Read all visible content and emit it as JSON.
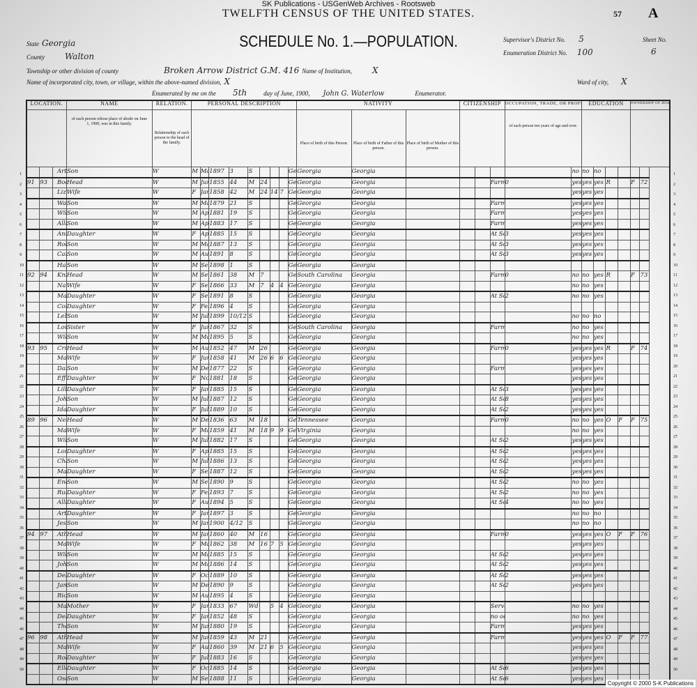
{
  "watermark": "SK Publications - USGenWeb Archives - Rootsweb",
  "title": "TWELFTH CENSUS OF THE UNITED STATES.",
  "page_number": "57",
  "page_letter": "A",
  "schedule_title": "SCHEDULE No. 1.—POPULATION.",
  "header": {
    "state_label": "State",
    "state": "Georgia",
    "county_label": "County",
    "county": "Walton",
    "township_label": "Township or other division of county",
    "township": "Broken Arrow District G.M. 416",
    "institution_label": "Name of Institution,",
    "institution": "X",
    "city_label": "Name of incorporated city, town, or village, within the above-named division,",
    "city": "X",
    "ward_label": "Ward of city,",
    "ward": "X",
    "enumerated_label": "Enumerated by me on the",
    "enumerated_day": "5th",
    "month_label": "day of June, 1900,",
    "enumerator": "John G. Waterlow",
    "enumerator_label": "Enumerator.",
    "supervisor_label": "Supervisor's District No.",
    "supervisor": "5",
    "enumeration_label": "Enumeration District No.",
    "enumeration": "100",
    "sheet_label": "Sheet No.",
    "sheet": "6"
  },
  "sections": {
    "location": "LOCATION.",
    "name": "NAME",
    "relation": "RELATION.",
    "personal": "PERSONAL DESCRIPTION",
    "nativity": "NATIVITY",
    "citizenship": "CITIZENSHIP",
    "occupation": "OCCUPATION, TRADE, OR PROFESSION",
    "education": "EDUCATION",
    "ownership": "OWNERSHIP OF HOME."
  },
  "column_headers": {
    "name": "of each person whose place of abode on June 1, 1900, was in this family.",
    "relation": "Relationship of each person to the head of the family.",
    "birth_person": "Place of birth of this Person.",
    "birth_father": "Place of birth of Father of this person.",
    "birth_mother": "Place of birth of Mother of this person.",
    "occupation": "of each person ten years of age and over."
  },
  "rows": [
    [
      "1",
      "",
      "",
      "Arthur",
      "Son",
      "W",
      "M",
      "May",
      "1897",
      "3",
      "S",
      "",
      "",
      "",
      "Georgia",
      "Georgia",
      "Georgia",
      "",
      "",
      "no",
      "no",
      "no",
      "",
      "",
      "",
      ""
    ],
    [
      "2",
      "91",
      "93",
      "Booth Robert",
      "Head",
      "W",
      "M",
      "June",
      "1855",
      "44",
      "M",
      "24",
      "",
      "",
      "Georgia",
      "Georgia",
      "Georgia",
      "Farmer",
      "0",
      "yes",
      "yes",
      "yes",
      "R",
      "",
      "F",
      "72"
    ],
    [
      "3",
      "",
      "",
      "Lizzie D",
      "Wife",
      "W",
      "F",
      "Jan",
      "1858",
      "42",
      "M",
      "24",
      "14",
      "7",
      "Georgia",
      "Georgia",
      "Georgia",
      "",
      "",
      "yes",
      "yes",
      "yes",
      "",
      "",
      "",
      ""
    ],
    [
      "4",
      "",
      "",
      "Walter H",
      "Son",
      "W",
      "M",
      "May",
      "1879",
      "21",
      "S",
      "",
      "",
      "",
      "Georgia",
      "Georgia",
      "Georgia",
      "Farm Labor",
      "",
      "yes",
      "yes",
      "yes",
      "",
      "",
      "",
      ""
    ],
    [
      "5",
      "",
      "",
      "William J",
      "Son",
      "W",
      "M",
      "Apr",
      "1881",
      "19",
      "S",
      "",
      "",
      "",
      "Georgia",
      "Georgia",
      "Georgia",
      "Farm Labor",
      "",
      "yes",
      "yes",
      "yes",
      "",
      "",
      "",
      ""
    ],
    [
      "6",
      "",
      "",
      "Allie L",
      "Son",
      "W",
      "M",
      "Apr",
      "1883",
      "17",
      "S",
      "",
      "",
      "",
      "Georgia",
      "Georgia",
      "Georgia",
      "Farm Labor",
      "",
      "yes",
      "yes",
      "yes",
      "",
      "",
      "",
      ""
    ],
    [
      "7",
      "",
      "",
      "Annie L",
      "Daughter",
      "W",
      "F",
      "Apr",
      "1885",
      "15",
      "S",
      "",
      "",
      "",
      "Georgia",
      "Georgia",
      "Georgia",
      "At School",
      "3",
      "yes",
      "yes",
      "yes",
      "",
      "",
      "",
      ""
    ],
    [
      "8",
      "",
      "",
      "Robert M",
      "Son",
      "W",
      "M",
      "Mar",
      "1887",
      "13",
      "S",
      "",
      "",
      "",
      "Georgia",
      "Georgia",
      "Georgia",
      "At School",
      "3",
      "yes",
      "yes",
      "yes",
      "",
      "",
      "",
      ""
    ],
    [
      "9",
      "",
      "",
      "Carl",
      "Son",
      "W",
      "M",
      "Aug",
      "1891",
      "8",
      "S",
      "",
      "",
      "",
      "Georgia",
      "Georgia",
      "Georgia",
      "At School",
      "3",
      "yes",
      "yes",
      "yes",
      "",
      "",
      "",
      ""
    ],
    [
      "10",
      "",
      "",
      "Haygood",
      "Son",
      "W",
      "M",
      "Sept",
      "1898",
      "1",
      "S",
      "",
      "",
      "",
      "Georgia",
      "Georgia",
      "Georgia",
      "",
      "",
      "",
      "",
      "",
      "",
      "",
      "",
      ""
    ],
    [
      "11",
      "92",
      "94",
      "Knight Benjamin",
      "Head",
      "W",
      "M",
      "Sept",
      "1861",
      "38",
      "M",
      "7",
      "",
      "",
      "Georgia",
      "South Carolina",
      "Georgia",
      "Farmer",
      "0",
      "no",
      "no",
      "yes",
      "R",
      "",
      "F",
      "73"
    ],
    [
      "12",
      "",
      "",
      "Nancy E",
      "Wife",
      "W",
      "F",
      "Sept",
      "1866",
      "33",
      "M",
      "7",
      "4",
      "4",
      "Georgia",
      "Georgia",
      "Georgia",
      "",
      "",
      "no",
      "no",
      "yes",
      "",
      "",
      "",
      ""
    ],
    [
      "13",
      "",
      "",
      "Mary",
      "Daughter",
      "W",
      "F",
      "Sept",
      "1891",
      "8",
      "S",
      "",
      "",
      "",
      "Georgia",
      "Georgia",
      "Georgia",
      "At School",
      "2",
      "no",
      "no",
      "yes",
      "",
      "",
      "",
      ""
    ],
    [
      "14",
      "",
      "",
      "Cora L",
      "Daughter",
      "W",
      "F",
      "Feb",
      "1896",
      "4",
      "S",
      "",
      "",
      "",
      "Georgia",
      "Georgia",
      "Georgia",
      "",
      "",
      "",
      "",
      "",
      "",
      "",
      "",
      ""
    ],
    [
      "15",
      "",
      "",
      "Leland",
      "Son",
      "W",
      "M",
      "July",
      "1899",
      "10/12",
      "S",
      "",
      "",
      "",
      "Georgia",
      "Georgia",
      "Georgia",
      "",
      "",
      "no",
      "no",
      "no",
      "",
      "",
      "",
      ""
    ],
    [
      "16",
      "",
      "",
      "Lou",
      "Sister",
      "W",
      "F",
      "June",
      "1867",
      "32",
      "S",
      "",
      "",
      "",
      "Georgia",
      "South Carolina",
      "Georgia",
      "Farm Laborer",
      "",
      "no",
      "no",
      "yes",
      "",
      "",
      "",
      ""
    ],
    [
      "17",
      "",
      "",
      "William H",
      "Son",
      "W",
      "M",
      "Mar",
      "1895",
      "5",
      "S",
      "",
      "",
      "",
      "Georgia",
      "Georgia",
      "Georgia",
      "",
      "",
      "no",
      "no",
      "yes",
      "",
      "",
      "",
      ""
    ],
    [
      "18",
      "93",
      "95",
      "Crumpton James",
      "Head",
      "W",
      "M",
      "Aug",
      "1852",
      "47",
      "M",
      "26",
      "",
      "",
      "Georgia",
      "Georgia",
      "Georgia",
      "Farmer",
      "0",
      "yes",
      "yes",
      "yes",
      "R",
      "",
      "F",
      "74"
    ],
    [
      "19",
      "",
      "",
      "Mary W",
      "Wife",
      "W",
      "F",
      "June",
      "1858",
      "41",
      "M",
      "26",
      "6",
      "6",
      "Georgia",
      "Georgia",
      "Georgia",
      "",
      "",
      "yes",
      "yes",
      "yes",
      "",
      "",
      "",
      ""
    ],
    [
      "20",
      "",
      "",
      "Daniel P",
      "Son",
      "W",
      "M",
      "Dec",
      "1877",
      "22",
      "S",
      "",
      "",
      "",
      "Georgia",
      "Georgia",
      "Georgia",
      "Farm Laborer",
      "",
      "yes",
      "yes",
      "yes",
      "",
      "",
      "",
      ""
    ],
    [
      "21",
      "",
      "",
      "Effie M",
      "Daughter",
      "W",
      "F",
      "Nov",
      "1881",
      "18",
      "S",
      "",
      "",
      "",
      "Georgia",
      "Georgia",
      "Georgia",
      "",
      "",
      "yes",
      "yes",
      "yes",
      "",
      "",
      "",
      ""
    ],
    [
      "22",
      "",
      "",
      "Lillie L",
      "Daughter",
      "W",
      "F",
      "Jan",
      "1885",
      "15",
      "S",
      "",
      "",
      "",
      "Georgia",
      "Georgia",
      "Georgia",
      "At School",
      "3",
      "yes",
      "yes",
      "yes",
      "",
      "",
      "",
      ""
    ],
    [
      "23",
      "",
      "",
      "John J",
      "Son",
      "W",
      "M",
      "July",
      "1887",
      "12",
      "S",
      "",
      "",
      "",
      "Georgia",
      "Georgia",
      "Georgia",
      "At School",
      "8",
      "yes",
      "yes",
      "yes",
      "",
      "",
      "",
      ""
    ],
    [
      "24",
      "",
      "",
      "Ida A",
      "Daughter",
      "W",
      "F",
      "July",
      "1889",
      "10",
      "S",
      "",
      "",
      "",
      "Georgia",
      "Georgia",
      "Georgia",
      "At School",
      "2",
      "yes",
      "yes",
      "yes",
      "",
      "",
      "",
      ""
    ],
    [
      "25",
      "89",
      "96",
      "Needham Rollin",
      "Head",
      "W",
      "M",
      "Dec",
      "1836",
      "63",
      "M",
      "18",
      "",
      "",
      "Georgia",
      "Tennessee",
      "Georgia",
      "Farmer",
      "0",
      "no",
      "no",
      "yes",
      "O",
      "F",
      "F",
      "75"
    ],
    [
      "26",
      "",
      "",
      "Mary F",
      "Wife",
      "W",
      "F",
      "May",
      "1859",
      "41",
      "M",
      "18",
      "9",
      "9",
      "Georgia",
      "Virginia",
      "Georgia",
      "",
      "",
      "no",
      "no",
      "yes",
      "",
      "",
      "",
      ""
    ],
    [
      "27",
      "",
      "",
      "William A",
      "Son",
      "W",
      "M",
      "July",
      "1882",
      "17",
      "S",
      "",
      "",
      "",
      "Georgia",
      "Georgia",
      "Georgia",
      "At School",
      "2",
      "yes",
      "yes",
      "yes",
      "",
      "",
      "",
      ""
    ],
    [
      "28",
      "",
      "",
      "Lou T",
      "Daughter",
      "W",
      "F",
      "Apr",
      "1885",
      "15",
      "S",
      "",
      "",
      "",
      "Georgia",
      "Georgia",
      "Georgia",
      "At School",
      "2",
      "yes",
      "yes",
      "yes",
      "",
      "",
      "",
      ""
    ],
    [
      "29",
      "",
      "",
      "Chares S",
      "Son",
      "W",
      "M",
      "July",
      "1886",
      "13",
      "S",
      "",
      "",
      "",
      "Georgia",
      "Georgia",
      "Georgia",
      "At School",
      "2",
      "yes",
      "yes",
      "yes",
      "",
      "",
      "",
      ""
    ],
    [
      "30",
      "",
      "",
      "Mandy F",
      "Daughter",
      "W",
      "F",
      "Sept",
      "1887",
      "12",
      "S",
      "",
      "",
      "",
      "Georgia",
      "Georgia",
      "Georgia",
      "At School",
      "2",
      "yes",
      "yes",
      "yes",
      "",
      "",
      "",
      ""
    ],
    [
      "31",
      "",
      "",
      "Enoch A",
      "Son",
      "W",
      "M",
      "Sept",
      "1890",
      "9",
      "S",
      "",
      "",
      "",
      "Georgia",
      "Georgia",
      "Georgia",
      "At School",
      "2",
      "no",
      "no",
      "yes",
      "",
      "",
      "",
      ""
    ],
    [
      "32",
      "",
      "",
      "Ruth B",
      "Daughter",
      "W",
      "F",
      "Feb",
      "1893",
      "7",
      "S",
      "",
      "",
      "",
      "Georgia",
      "Georgia",
      "Georgia",
      "At School",
      "2",
      "no",
      "no",
      "yes",
      "",
      "",
      "",
      ""
    ],
    [
      "33",
      "",
      "",
      "Allice M",
      "Daughter",
      "W",
      "F",
      "Aug",
      "1894",
      "5",
      "S",
      "",
      "",
      "",
      "Georgia",
      "Georgia",
      "Georgia",
      "At School",
      "4",
      "no",
      "no",
      "yes",
      "",
      "",
      "",
      ""
    ],
    [
      "34",
      "",
      "",
      "Artice C",
      "Daughter",
      "W",
      "F",
      "Jan",
      "1897",
      "3",
      "S",
      "",
      "",
      "",
      "Georgia",
      "Georgia",
      "Georgia",
      "",
      "",
      "no",
      "no",
      "no",
      "",
      "",
      "",
      ""
    ],
    [
      "35",
      "",
      "",
      "Jesse G",
      "Son",
      "W",
      "M",
      "Jan",
      "1900",
      "4/12",
      "S",
      "",
      "",
      "",
      "Georgia",
      "Georgia",
      "Georgia",
      "",
      "",
      "no",
      "no",
      "no",
      "",
      "",
      "",
      ""
    ],
    [
      "36",
      "94",
      "97",
      "Athe Richard",
      "Head",
      "W",
      "M",
      "Jan",
      "1860",
      "40",
      "M",
      "16",
      "",
      "",
      "Georgia",
      "Georgia",
      "Georgia",
      "Farmer",
      "0",
      "yes",
      "yes",
      "yes",
      "O",
      "F",
      "F",
      "76"
    ],
    [
      "37",
      "",
      "",
      "Mattie A",
      "Wife",
      "W",
      "F",
      "Mar",
      "1862",
      "38",
      "M",
      "16",
      "7",
      "5",
      "Georgia",
      "Georgia",
      "Georgia",
      "",
      "",
      "yes",
      "yes",
      "yes",
      "",
      "",
      "",
      ""
    ],
    [
      "38",
      "",
      "",
      "Willis O",
      "Son",
      "W",
      "M",
      "May",
      "1885",
      "15",
      "S",
      "",
      "",
      "",
      "Georgia",
      "Georgia",
      "Georgia",
      "At School",
      "2",
      "yes",
      "yes",
      "yes",
      "",
      "",
      "",
      ""
    ],
    [
      "39",
      "",
      "",
      "John C",
      "Son",
      "W",
      "M",
      "May",
      "1886",
      "14",
      "S",
      "",
      "",
      "",
      "Georgia",
      "Georgia",
      "Georgia",
      "At School",
      "2",
      "yes",
      "yes",
      "yes",
      "",
      "",
      "",
      ""
    ],
    [
      "40",
      "",
      "",
      "Della M",
      "Daughter",
      "W",
      "F",
      "Oct",
      "1889",
      "10",
      "S",
      "",
      "",
      "",
      "Georgia",
      "Georgia",
      "Georgia",
      "At School",
      "2",
      "yes",
      "yes",
      "yes",
      "",
      "",
      "",
      ""
    ],
    [
      "41",
      "",
      "",
      "James P",
      "Son",
      "W",
      "M",
      "Dec",
      "1890",
      "9",
      "S",
      "",
      "",
      "",
      "Georgia",
      "Georgia",
      "Georgia",
      "At School",
      "2",
      "yes",
      "yes",
      "yes",
      "",
      "",
      "",
      ""
    ],
    [
      "42",
      "",
      "",
      "Richard B",
      "Son",
      "W",
      "M",
      "Aug",
      "1895",
      "4",
      "S",
      "",
      "",
      "",
      "Georgia",
      "Georgia",
      "Georgia",
      "",
      "",
      "",
      "",
      "",
      "",
      "",
      "",
      ""
    ],
    [
      "43",
      "",
      "",
      "Mary E",
      "Mother",
      "W",
      "F",
      "Jan",
      "1833",
      "67",
      "Wd",
      "",
      "5",
      "4",
      "Georgia",
      "Georgia",
      "Georgia",
      "Servant",
      "",
      "no",
      "no",
      "yes",
      "",
      "",
      "",
      ""
    ],
    [
      "44",
      "",
      "",
      "Dell L",
      "Daughter",
      "W",
      "F",
      "Jan",
      "1852",
      "48",
      "S",
      "",
      "",
      "",
      "Georgia",
      "Georgia",
      "Georgia",
      "no occupation",
      "",
      "no",
      "no",
      "yes",
      "",
      "",
      "",
      ""
    ],
    [
      "45",
      "",
      "",
      "Thos P",
      "Son",
      "W",
      "M",
      "June",
      "1880",
      "19",
      "S",
      "",
      "",
      "",
      "Georgia",
      "Georgia",
      "Georgia",
      "Farm Laborer",
      "",
      "yes",
      "yes",
      "yes",
      "",
      "",
      "",
      ""
    ],
    [
      "46",
      "96",
      "98",
      "Atha William",
      "Head",
      "W",
      "M",
      "June",
      "1859",
      "43",
      "M",
      "21",
      "",
      "",
      "Georgia",
      "Georgia",
      "Georgia",
      "Farmer",
      "",
      "yes",
      "yes",
      "yes",
      "O",
      "F",
      "F",
      "77"
    ],
    [
      "47",
      "",
      "",
      "Martha E",
      "Wife",
      "W",
      "F",
      "Aug",
      "1860",
      "39",
      "M",
      "21",
      "6",
      "5",
      "Georgia",
      "Georgia",
      "Georgia",
      "",
      "",
      "yes",
      "yes",
      "yes",
      "",
      "",
      "",
      ""
    ],
    [
      "48",
      "",
      "",
      "Robena",
      "Daughter",
      "W",
      "F",
      "July",
      "1883",
      "16",
      "S",
      "",
      "",
      "",
      "Georgia",
      "Georgia",
      "Georgia",
      "",
      "",
      "yes",
      "yes",
      "yes",
      "",
      "",
      "",
      ""
    ],
    [
      "49",
      "",
      "",
      "Ellen M",
      "Daughter",
      "W",
      "F",
      "Oct",
      "1885",
      "14",
      "S",
      "",
      "",
      "",
      "Georgia",
      "Georgia",
      "Georgia",
      "At School",
      "6",
      "yes",
      "yes",
      "yes",
      "",
      "",
      "",
      ""
    ],
    [
      "50",
      "",
      "",
      "Oscar T",
      "Son",
      "W",
      "M",
      "Sept",
      "1888",
      "11",
      "S",
      "",
      "",
      "",
      "Georgia",
      "Georgia",
      "Georgia",
      "At School",
      "6",
      "yes",
      "yes",
      "yes",
      "",
      "",
      "",
      ""
    ]
  ],
  "family_start_lines": [
    2,
    4,
    7,
    10,
    13,
    16,
    18,
    22,
    25,
    28,
    31,
    34,
    36,
    40,
    43,
    46,
    49
  ],
  "copyright": "Copyright © 2000 S-K Publications"
}
